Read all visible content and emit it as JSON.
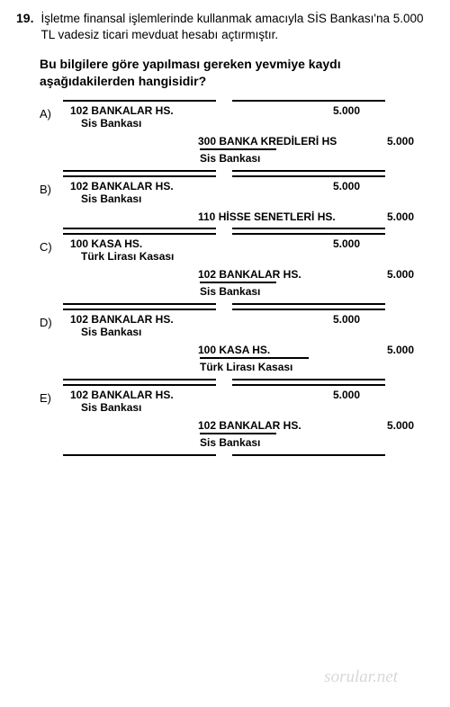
{
  "question": {
    "number": "19.",
    "text": "İşletme finansal işlemlerinde kullanmak amacıyla SİS Bankası'na 5.000 TL vadesiz ticari mevduat hesabı açtırmıştır.",
    "prompt": "Bu bilgilere göre yapılması gereken yevmiye kaydı aşağıdakilerden hangisidir?"
  },
  "options": {
    "A": {
      "label": "A)",
      "debit_acc": "102 BANKALAR HS.",
      "debit_sub": "Sis Bankası",
      "debit_amt": "5.000",
      "credit_acc": "300 BANKA KREDİLERİ HS",
      "credit_sub": "Sis Bankası",
      "credit_amt": "5.000"
    },
    "B": {
      "label": "B)",
      "debit_acc": "102 BANKALAR HS.",
      "debit_sub": "Sis Bankası",
      "debit_amt": "5.000",
      "credit_acc": "110 HİSSE SENETLERİ HS.",
      "credit_sub": "",
      "credit_amt": "5.000"
    },
    "C": {
      "label": "C)",
      "debit_acc": "100 KASA HS.",
      "debit_sub": "Türk Lirası Kasası",
      "debit_amt": "5.000",
      "credit_acc": "102 BANKALAR HS.",
      "credit_sub": "Sis Bankası",
      "credit_amt": "5.000"
    },
    "D": {
      "label": "D)",
      "debit_acc": "102 BANKALAR HS.",
      "debit_sub": "Sis Bankası",
      "debit_amt": "5.000",
      "credit_acc": "100 KASA HS.",
      "credit_sub": "Türk Lirası Kasası",
      "credit_amt": "5.000"
    },
    "E": {
      "label": "E)",
      "debit_acc": "102 BANKALAR HS.",
      "debit_sub": "Sis Bankası",
      "debit_amt": "5.000",
      "credit_acc": "102 BANKALAR HS.",
      "credit_sub": "Sis Bankası",
      "credit_amt": "5.000"
    }
  },
  "watermark": "sorular.net"
}
